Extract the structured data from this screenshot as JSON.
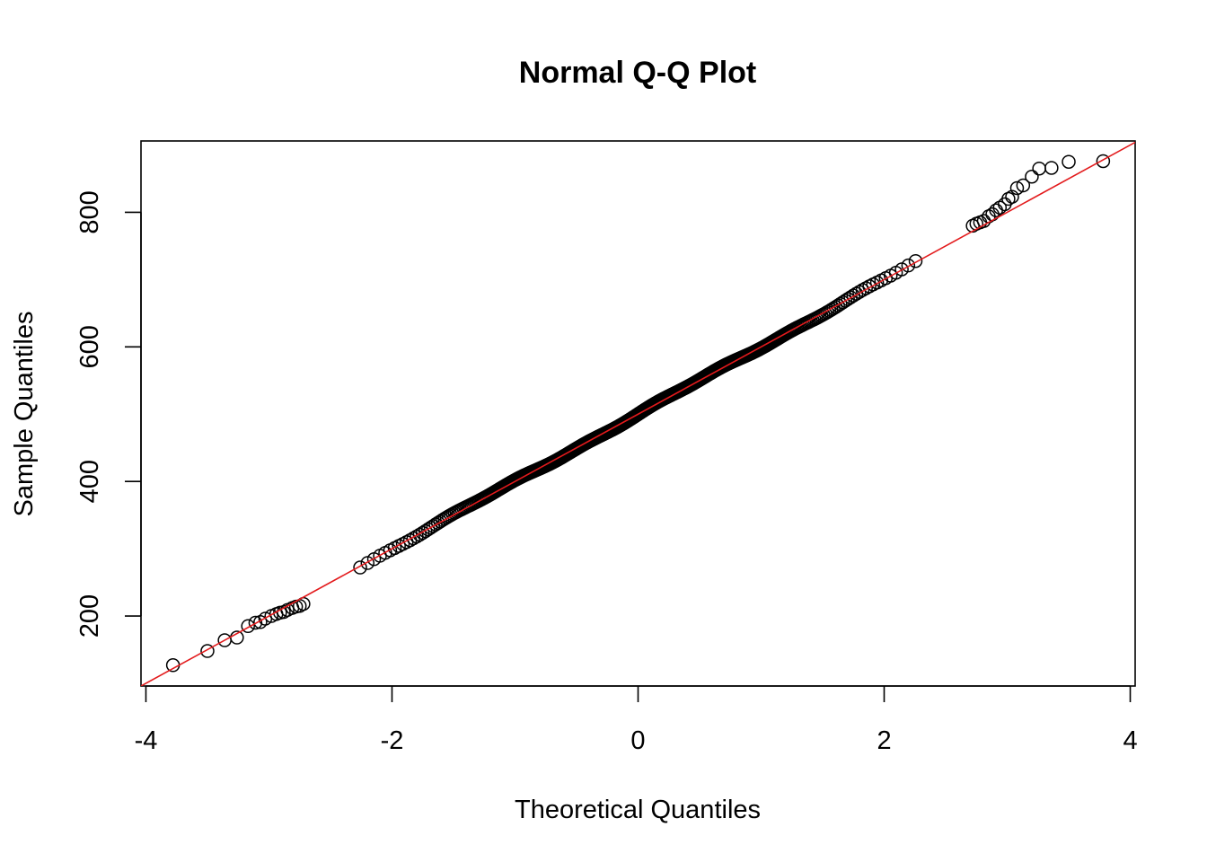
{
  "chart_data": {
    "type": "scatter",
    "title": "Normal Q-Q Plot",
    "xlabel": "Theoretical Quantiles",
    "ylabel": "Sample Quantiles",
    "xlim": [
      -4.04,
      4.04
    ],
    "ylim": [
      96,
      906
    ],
    "x_ticks": [
      -4,
      -2,
      0,
      2,
      4
    ],
    "y_ticks": [
      200,
      400,
      600,
      800
    ],
    "x_tick_labels": [
      "-4",
      "-2",
      "0",
      "2",
      "4"
    ],
    "y_tick_labels": [
      "200",
      "400",
      "600",
      "800"
    ],
    "grid": false,
    "legend": "none",
    "n_points": 10000,
    "reference_line": {
      "intercept": 500,
      "slope": 100,
      "color": "#e31a1c"
    },
    "point_color": "#000000",
    "lower_tail_points": [
      [
        -3.78,
        127
      ],
      [
        -3.5,
        148
      ],
      [
        -3.36,
        164
      ],
      [
        -3.26,
        168
      ],
      [
        -3.17,
        185
      ],
      [
        -3.11,
        190
      ],
      [
        -3.07,
        191
      ],
      [
        -3.03,
        196
      ],
      [
        -2.98,
        200
      ],
      [
        -2.94,
        203
      ],
      [
        -2.91,
        205
      ],
      [
        -2.88,
        206
      ],
      [
        -2.85,
        209
      ],
      [
        -2.81,
        212
      ],
      [
        -2.78,
        214
      ],
      [
        -2.75,
        215
      ],
      [
        -2.72,
        218
      ]
    ],
    "upper_tail_points": [
      [
        2.72,
        780
      ],
      [
        2.75,
        783
      ],
      [
        2.78,
        785
      ],
      [
        2.81,
        787
      ],
      [
        2.85,
        794
      ],
      [
        2.88,
        797
      ],
      [
        2.91,
        803
      ],
      [
        2.94,
        807
      ],
      [
        2.98,
        812
      ],
      [
        3.01,
        820
      ],
      [
        3.04,
        823
      ],
      [
        3.08,
        836
      ],
      [
        3.13,
        840
      ],
      [
        3.2,
        853
      ],
      [
        3.26,
        865
      ],
      [
        3.36,
        866
      ],
      [
        3.5,
        875
      ],
      [
        3.78,
        876
      ]
    ]
  }
}
